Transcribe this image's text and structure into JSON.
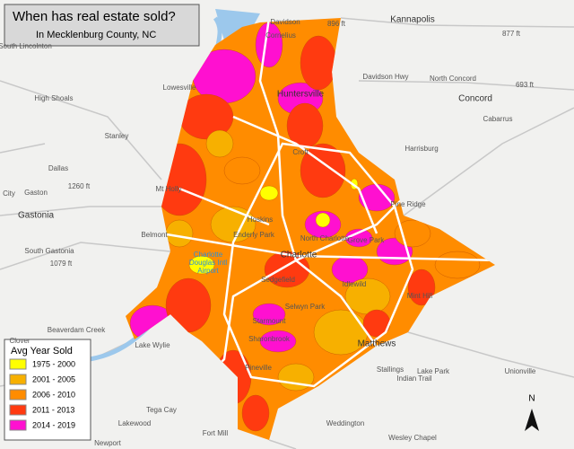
{
  "header": {
    "title": "When has real estate sold?",
    "subtitle": "In Mecklenburg County, NC"
  },
  "legend": {
    "title": "Avg Year Sold",
    "items": [
      {
        "label": "1975 - 2000",
        "color": "#ffff00"
      },
      {
        "label": "2001 - 2005",
        "color": "#f7b000"
      },
      {
        "label": "2006 - 2010",
        "color": "#ff8c00"
      },
      {
        "label": "2011 - 2013",
        "color": "#ff3a10"
      },
      {
        "label": "2014 - 2019",
        "color": "#ff10d0"
      }
    ]
  },
  "places": [
    "Davidson",
    "Kannapolis",
    "896 ft",
    "877 ft",
    "Cornelius",
    "South Lincolnton",
    "Lowesville",
    "Davidson Hwy",
    "North Concord",
    "693 ft",
    "Concord",
    "Huntersville",
    "High Shoals",
    "Cabarrus",
    "Stanley",
    "Dallas",
    "Harrisburg",
    "Croft",
    "1260 ft",
    "Mt Holly",
    "Gaston",
    "City",
    "Pine Ridge",
    "Gastonia",
    "Hoskins",
    "Enderly Park",
    "North Charlotte",
    "Grove Park",
    "Belmont",
    "Charlotte",
    "South Gastonia",
    "1079 ft",
    "Sedgefield",
    "Idlewild",
    "Mint Hill",
    "Selwyn Park",
    "Beaverdam Creek",
    "Starmount",
    "Sharonbrook",
    "Matthews",
    "Clover",
    "Lake Wylie",
    "Pineville",
    "Stallings",
    "Lake Park",
    "Indian Trail",
    "Unionville",
    "Tega Cay",
    "Lakewood",
    "Fort Mill",
    "Weddington",
    "Wesley Chapel",
    "Newport"
  ],
  "airport": [
    "Charlotte",
    "Douglas Intl",
    "Airport"
  ],
  "north": "N"
}
